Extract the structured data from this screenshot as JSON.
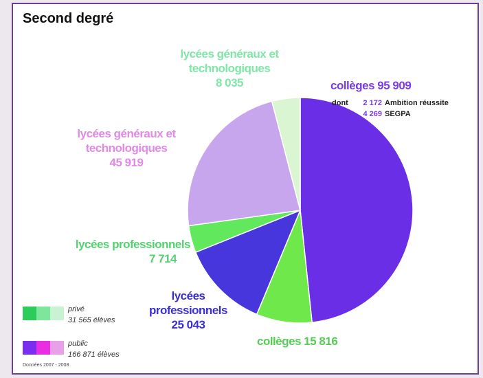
{
  "chart_data": {
    "type": "pie",
    "title": "Second degré",
    "categories": [
      "collèges",
      "collèges",
      "lycées professionnels",
      "lycées professionnels",
      "lycées généraux et technologiques",
      "lycées généraux et technologiques"
    ],
    "values": [
      95909,
      15816,
      25043,
      7714,
      45919,
      8035
    ],
    "value_labels": [
      "95 909",
      "15 816",
      "25 043",
      "7 714",
      "45 919",
      "8 035"
    ],
    "colors": [
      "#6a2ee6",
      "#6ee84a",
      "#4636dc",
      "#62e85c",
      "#c7a6ee",
      "#d9f5d2"
    ],
    "label_colors": [
      "#7a3ae8",
      "#55cc55",
      "#3a2fd0",
      "#55d070",
      "#e08ae6",
      "#80e6a6"
    ],
    "subnote": {
      "prefix": "dont",
      "items": [
        {
          "value": 2172,
          "label": "2 172",
          "name": "Ambition réussite"
        },
        {
          "value": 4269,
          "label": "4 269",
          "name": "SEGPA"
        }
      ]
    },
    "legend": [
      {
        "name": "privé",
        "total": 31565,
        "total_label": "31 565 élèves",
        "colors": [
          "#2ccc5a",
          "#7ee69a",
          "#c8f2d2"
        ]
      },
      {
        "name": "public",
        "total": 166871,
        "total_label": "166 871 élèves",
        "colors": [
          "#7a2ef0",
          "#e82ee0",
          "#e8a0e8"
        ]
      }
    ],
    "source": "Données 2007 - 2008"
  }
}
